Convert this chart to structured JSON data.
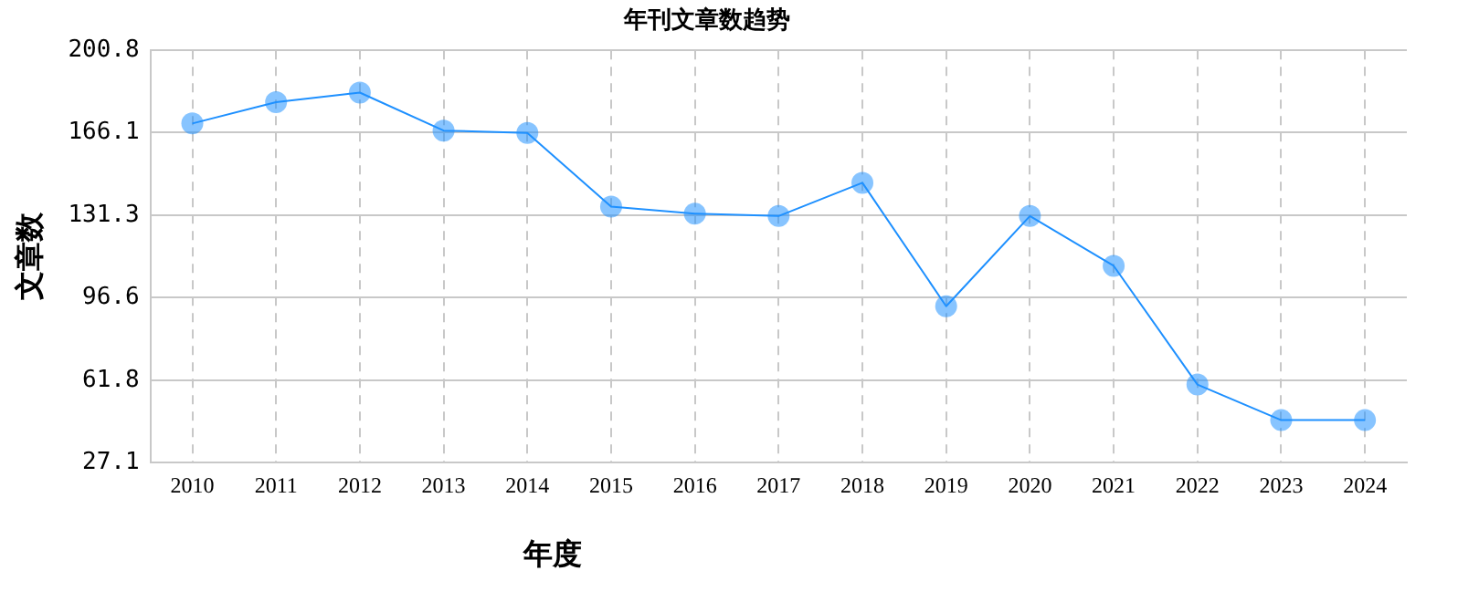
{
  "chart_data": {
    "type": "line",
    "title": "年刊文章数趋势",
    "xlabel": "年度",
    "ylabel": "文章数",
    "categories": [
      "2010",
      "2011",
      "2012",
      "2013",
      "2014",
      "2015",
      "2016",
      "2017",
      "2018",
      "2019",
      "2020",
      "2021",
      "2022",
      "2023",
      "2024"
    ],
    "series": [
      {
        "color": "#1e90ff",
        "values": [
          170,
          179,
          183,
          167,
          166,
          135,
          132,
          131,
          145,
          93,
          131,
          110,
          60,
          45,
          45
        ]
      }
    ],
    "ylim": [
      27.1,
      200.8
    ],
    "yticks": [
      27.1,
      61.8,
      96.6,
      131.3,
      166.1,
      200.8
    ],
    "grid": true,
    "legend": false,
    "marker": "circle",
    "line_style": "solid"
  }
}
